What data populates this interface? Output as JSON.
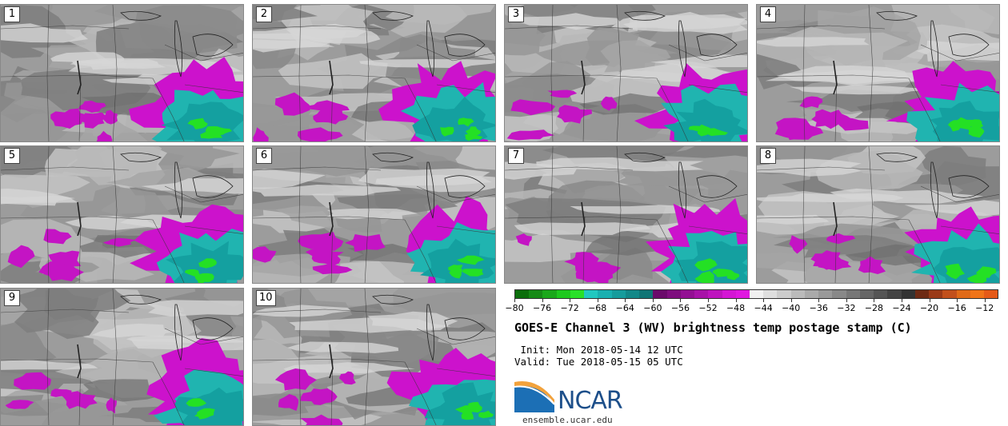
{
  "panels": [
    {
      "label": "1"
    },
    {
      "label": "2"
    },
    {
      "label": "3"
    },
    {
      "label": "4"
    },
    {
      "label": "5"
    },
    {
      "label": "6"
    },
    {
      "label": "7"
    },
    {
      "label": "8"
    },
    {
      "label": "9"
    },
    {
      "label": "10"
    }
  ],
  "colorbar": {
    "min": -80,
    "max": -10,
    "step": 2,
    "tick_labels": [
      "-80",
      "-76",
      "-72",
      "-68",
      "-64",
      "-60",
      "-56",
      "-52",
      "-48",
      "-44",
      "-40",
      "-36",
      "-32",
      "-28",
      "-24",
      "-20",
      "-16",
      "-12"
    ],
    "tick_values": [
      -80,
      -76,
      -72,
      -68,
      -64,
      -60,
      -56,
      -52,
      -48,
      -44,
      -40,
      -36,
      -32,
      -28,
      -24,
      -20,
      -16,
      -12
    ],
    "colors": [
      "#0b6e0b",
      "#158a15",
      "#1aa81a",
      "#1ec81e",
      "#28e028",
      "#20c8c0",
      "#19b0b0",
      "#169c9c",
      "#128888",
      "#0f7575",
      "#6a0a6a",
      "#7e0e7e",
      "#930f93",
      "#a812a8",
      "#be14be",
      "#d416d4",
      "#e018e0",
      "#f0f0f0",
      "#dedede",
      "#cccccc",
      "#bbbbbb",
      "#aaaaaa",
      "#999999",
      "#888888",
      "#777777",
      "#666666",
      "#555555",
      "#444444",
      "#333333",
      "#6e2a14",
      "#9a3a18",
      "#c2501c",
      "#e06a18",
      "#f07418",
      "#e55a18"
    ]
  },
  "title": "GOES-E Channel 3 (WV) brightness temp postage stamp (C)",
  "init": " Init: Mon 2018-05-14 12 UTC",
  "valid": "Valid: Tue 2018-05-15 05 UTC",
  "logo": {
    "word": "NCAR",
    "url": "ensemble.ucar.edu"
  }
}
